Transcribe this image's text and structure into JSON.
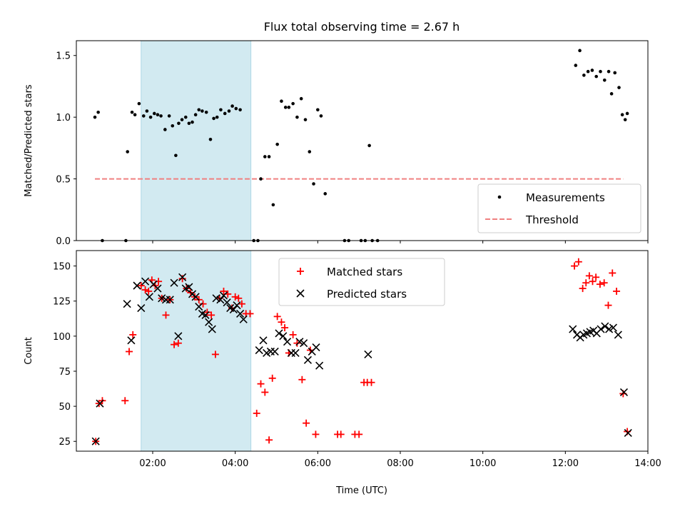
{
  "chart_data": {
    "type": "scatter",
    "title": "Flux total observing time = 2.67 h",
    "xlabel": "Time (UTC)",
    "x_ticks": [
      "02:00",
      "04:00",
      "06:00",
      "08:00",
      "10:00",
      "12:00",
      "14:00"
    ],
    "x_tick_hours": [
      2,
      4,
      6,
      8,
      10,
      12,
      14
    ],
    "xlim_hours": [
      0.15,
      14.0
    ],
    "shaded_interval_hours": [
      1.72,
      4.38
    ],
    "shade_color": "#add8e6",
    "panels": [
      {
        "ylabel": "Matched/Predicted stars",
        "ylim": [
          0,
          1.62
        ],
        "y_ticks": [
          0.0,
          0.5,
          1.0,
          1.5
        ],
        "y_tick_labels": [
          "0.0",
          "0.5",
          "1.0",
          "1.5"
        ],
        "legend_position": "lower-right",
        "threshold": {
          "name": "Threshold",
          "value": 0.5,
          "x_range_hours": [
            0.6,
            13.4
          ],
          "color": "#f08080"
        },
        "series": [
          {
            "name": "Measurements",
            "color": "#000000",
            "marker": "dot",
            "points": [
              [
                0.6,
                1.0
              ],
              [
                0.68,
                1.04
              ],
              [
                0.78,
                0.0
              ],
              [
                1.35,
                0.0
              ],
              [
                1.39,
                0.72
              ],
              [
                1.5,
                1.04
              ],
              [
                1.57,
                1.02
              ],
              [
                1.67,
                1.11
              ],
              [
                1.78,
                1.01
              ],
              [
                1.86,
                1.05
              ],
              [
                1.95,
                1.0
              ],
              [
                2.04,
                1.03
              ],
              [
                2.12,
                1.02
              ],
              [
                2.2,
                1.01
              ],
              [
                2.3,
                0.9
              ],
              [
                2.4,
                1.01
              ],
              [
                2.48,
                0.93
              ],
              [
                2.56,
                0.69
              ],
              [
                2.63,
                0.95
              ],
              [
                2.71,
                0.98
              ],
              [
                2.8,
                1.0
              ],
              [
                2.88,
                0.95
              ],
              [
                2.96,
                0.96
              ],
              [
                3.04,
                1.02
              ],
              [
                3.12,
                1.06
              ],
              [
                3.2,
                1.05
              ],
              [
                3.3,
                1.04
              ],
              [
                3.4,
                0.82
              ],
              [
                3.48,
                0.99
              ],
              [
                3.56,
                1.0
              ],
              [
                3.65,
                1.06
              ],
              [
                3.75,
                1.03
              ],
              [
                3.85,
                1.05
              ],
              [
                3.93,
                1.09
              ],
              [
                4.02,
                1.07
              ],
              [
                4.12,
                1.06
              ],
              [
                4.45,
                0.0
              ],
              [
                4.55,
                0.0
              ],
              [
                4.62,
                0.5
              ],
              [
                4.72,
                0.68
              ],
              [
                4.82,
                0.68
              ],
              [
                4.92,
                0.29
              ],
              [
                5.02,
                0.78
              ],
              [
                5.12,
                1.13
              ],
              [
                5.22,
                1.08
              ],
              [
                5.3,
                1.08
              ],
              [
                5.4,
                1.11
              ],
              [
                5.5,
                1.0
              ],
              [
                5.6,
                1.15
              ],
              [
                5.7,
                0.98
              ],
              [
                5.8,
                0.72
              ],
              [
                5.9,
                0.46
              ],
              [
                6.0,
                1.06
              ],
              [
                6.08,
                1.01
              ],
              [
                6.18,
                0.38
              ],
              [
                6.65,
                0.0
              ],
              [
                6.75,
                0.0
              ],
              [
                7.05,
                0.0
              ],
              [
                7.15,
                0.0
              ],
              [
                7.25,
                0.77
              ],
              [
                7.32,
                0.0
              ],
              [
                7.45,
                0.0
              ],
              [
                12.25,
                1.42
              ],
              [
                12.35,
                1.54
              ],
              [
                12.45,
                1.34
              ],
              [
                12.55,
                1.37
              ],
              [
                12.65,
                1.38
              ],
              [
                12.75,
                1.33
              ],
              [
                12.85,
                1.37
              ],
              [
                12.95,
                1.3
              ],
              [
                13.05,
                1.37
              ],
              [
                13.12,
                1.19
              ],
              [
                13.2,
                1.36
              ],
              [
                13.3,
                1.24
              ],
              [
                13.38,
                1.02
              ],
              [
                13.45,
                0.98
              ],
              [
                13.5,
                1.03
              ]
            ]
          }
        ]
      },
      {
        "ylabel": "Count",
        "ylim": [
          18,
          161
        ],
        "y_ticks": [
          25,
          50,
          75,
          100,
          125,
          150
        ],
        "y_tick_labels": [
          "25",
          "50",
          "75",
          "100",
          "125",
          "150"
        ],
        "legend_position": "upper-center",
        "series": [
          {
            "name": "Matched stars",
            "color": "#ff0000",
            "marker": "plus",
            "points": [
              [
                0.62,
                25
              ],
              [
                0.7,
                52
              ],
              [
                0.78,
                54
              ],
              [
                1.33,
                54
              ],
              [
                1.43,
                89
              ],
              [
                1.52,
                101
              ],
              [
                1.72,
                136
              ],
              [
                1.82,
                133
              ],
              [
                1.9,
                132
              ],
              [
                1.98,
                140
              ],
              [
                2.06,
                136
              ],
              [
                2.14,
                139
              ],
              [
                2.22,
                127
              ],
              [
                2.32,
                115
              ],
              [
                2.42,
                126
              ],
              [
                2.52,
                94
              ],
              [
                2.62,
                95
              ],
              [
                2.72,
                141
              ],
              [
                2.82,
                134
              ],
              [
                2.92,
                131
              ],
              [
                3.02,
                128
              ],
              [
                3.12,
                126
              ],
              [
                3.22,
                123
              ],
              [
                3.32,
                117
              ],
              [
                3.42,
                115
              ],
              [
                3.52,
                87
              ],
              [
                3.62,
                127
              ],
              [
                3.72,
                132
              ],
              [
                3.82,
                130
              ],
              [
                3.92,
                120
              ],
              [
                4.0,
                128
              ],
              [
                4.08,
                127
              ],
              [
                4.16,
                123
              ],
              [
                4.26,
                116
              ],
              [
                4.36,
                116
              ],
              [
                4.52,
                45
              ],
              [
                4.62,
                66
              ],
              [
                4.72,
                60
              ],
              [
                4.82,
                26
              ],
              [
                4.9,
                70
              ],
              [
                5.02,
                114
              ],
              [
                5.12,
                110
              ],
              [
                5.2,
                106
              ],
              [
                5.3,
                88
              ],
              [
                5.4,
                101
              ],
              [
                5.5,
                95
              ],
              [
                5.62,
                69
              ],
              [
                5.72,
                38
              ],
              [
                5.82,
                90
              ],
              [
                5.95,
                30
              ],
              [
                6.48,
                30
              ],
              [
                6.56,
                30
              ],
              [
                6.9,
                30
              ],
              [
                7.0,
                30
              ],
              [
                7.12,
                67
              ],
              [
                7.2,
                67
              ],
              [
                7.3,
                67
              ],
              [
                12.22,
                150
              ],
              [
                12.32,
                153
              ],
              [
                12.42,
                134
              ],
              [
                12.5,
                138
              ],
              [
                12.58,
                143
              ],
              [
                12.66,
                139
              ],
              [
                12.74,
                142
              ],
              [
                12.84,
                137
              ],
              [
                12.94,
                138
              ],
              [
                13.04,
                122
              ],
              [
                13.14,
                145
              ],
              [
                13.24,
                132
              ],
              [
                13.4,
                59
              ],
              [
                13.5,
                32
              ]
            ]
          },
          {
            "name": "Predicted stars",
            "color": "#000000",
            "marker": "x",
            "points": [
              [
                0.62,
                25
              ],
              [
                0.72,
                52
              ],
              [
                1.38,
                123
              ],
              [
                1.48,
                97
              ],
              [
                1.62,
                136
              ],
              [
                1.72,
                120
              ],
              [
                1.82,
                139
              ],
              [
                1.92,
                128
              ],
              [
                2.02,
                137
              ],
              [
                2.12,
                134
              ],
              [
                2.22,
                127
              ],
              [
                2.32,
                126
              ],
              [
                2.42,
                126
              ],
              [
                2.52,
                138
              ],
              [
                2.62,
                100
              ],
              [
                2.72,
                142
              ],
              [
                2.8,
                134
              ],
              [
                2.88,
                135
              ],
              [
                2.96,
                130
              ],
              [
                3.04,
                128
              ],
              [
                3.12,
                121
              ],
              [
                3.2,
                116
              ],
              [
                3.28,
                115
              ],
              [
                3.36,
                110
              ],
              [
                3.44,
                105
              ],
              [
                3.54,
                127
              ],
              [
                3.64,
                126
              ],
              [
                3.72,
                129
              ],
              [
                3.8,
                124
              ],
              [
                3.88,
                120
              ],
              [
                3.96,
                119
              ],
              [
                4.04,
                122
              ],
              [
                4.12,
                116
              ],
              [
                4.2,
                112
              ],
              [
                4.58,
                90
              ],
              [
                4.68,
                97
              ],
              [
                4.76,
                88
              ],
              [
                4.86,
                89
              ],
              [
                4.96,
                89
              ],
              [
                5.06,
                102
              ],
              [
                5.16,
                100
              ],
              [
                5.26,
                96
              ],
              [
                5.36,
                88
              ],
              [
                5.46,
                88
              ],
              [
                5.56,
                96
              ],
              [
                5.66,
                95
              ],
              [
                5.76,
                83
              ],
              [
                5.86,
                89
              ],
              [
                5.96,
                92
              ],
              [
                6.04,
                79
              ],
              [
                7.22,
                87
              ],
              [
                12.18,
                105
              ],
              [
                12.28,
                101
              ],
              [
                12.36,
                99
              ],
              [
                12.44,
                101
              ],
              [
                12.52,
                102
              ],
              [
                12.6,
                103
              ],
              [
                12.68,
                104
              ],
              [
                12.76,
                102
              ],
              [
                12.86,
                105
              ],
              [
                12.96,
                107
              ],
              [
                13.06,
                105
              ],
              [
                13.16,
                106
              ],
              [
                13.28,
                101
              ],
              [
                13.42,
                60
              ],
              [
                13.52,
                31
              ]
            ]
          }
        ]
      }
    ]
  }
}
